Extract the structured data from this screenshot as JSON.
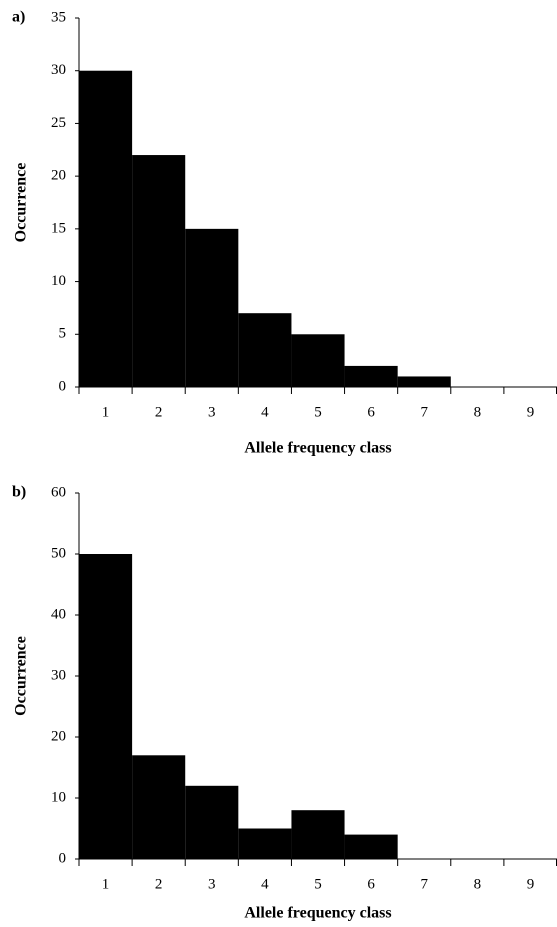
{
  "chart_data": [
    {
      "type": "bar",
      "panel_label": "a)",
      "ylabel": "Occurrence",
      "xlabel": "Allele frequency class",
      "categories": [
        "1",
        "2",
        "3",
        "4",
        "5",
        "6",
        "7",
        "8",
        "9"
      ],
      "values": [
        30,
        22,
        15,
        7,
        5,
        2,
        1,
        0,
        0
      ],
      "color": "#000000",
      "ylim": [
        0,
        35
      ],
      "yticks": [
        0,
        5,
        10,
        15,
        20,
        25,
        30,
        35
      ],
      "grid": false
    },
    {
      "type": "bar",
      "panel_label": "b)",
      "ylabel": "Occurrence",
      "xlabel": "Allele frequency class",
      "categories": [
        "1",
        "2",
        "3",
        "4",
        "5",
        "6",
        "7",
        "8",
        "9"
      ],
      "values": [
        50,
        17,
        12,
        5,
        8,
        4,
        0,
        0,
        0
      ],
      "color": "#000000",
      "ylim": [
        0,
        60
      ],
      "yticks": [
        0,
        10,
        20,
        30,
        40,
        50,
        60
      ],
      "grid": false
    }
  ]
}
